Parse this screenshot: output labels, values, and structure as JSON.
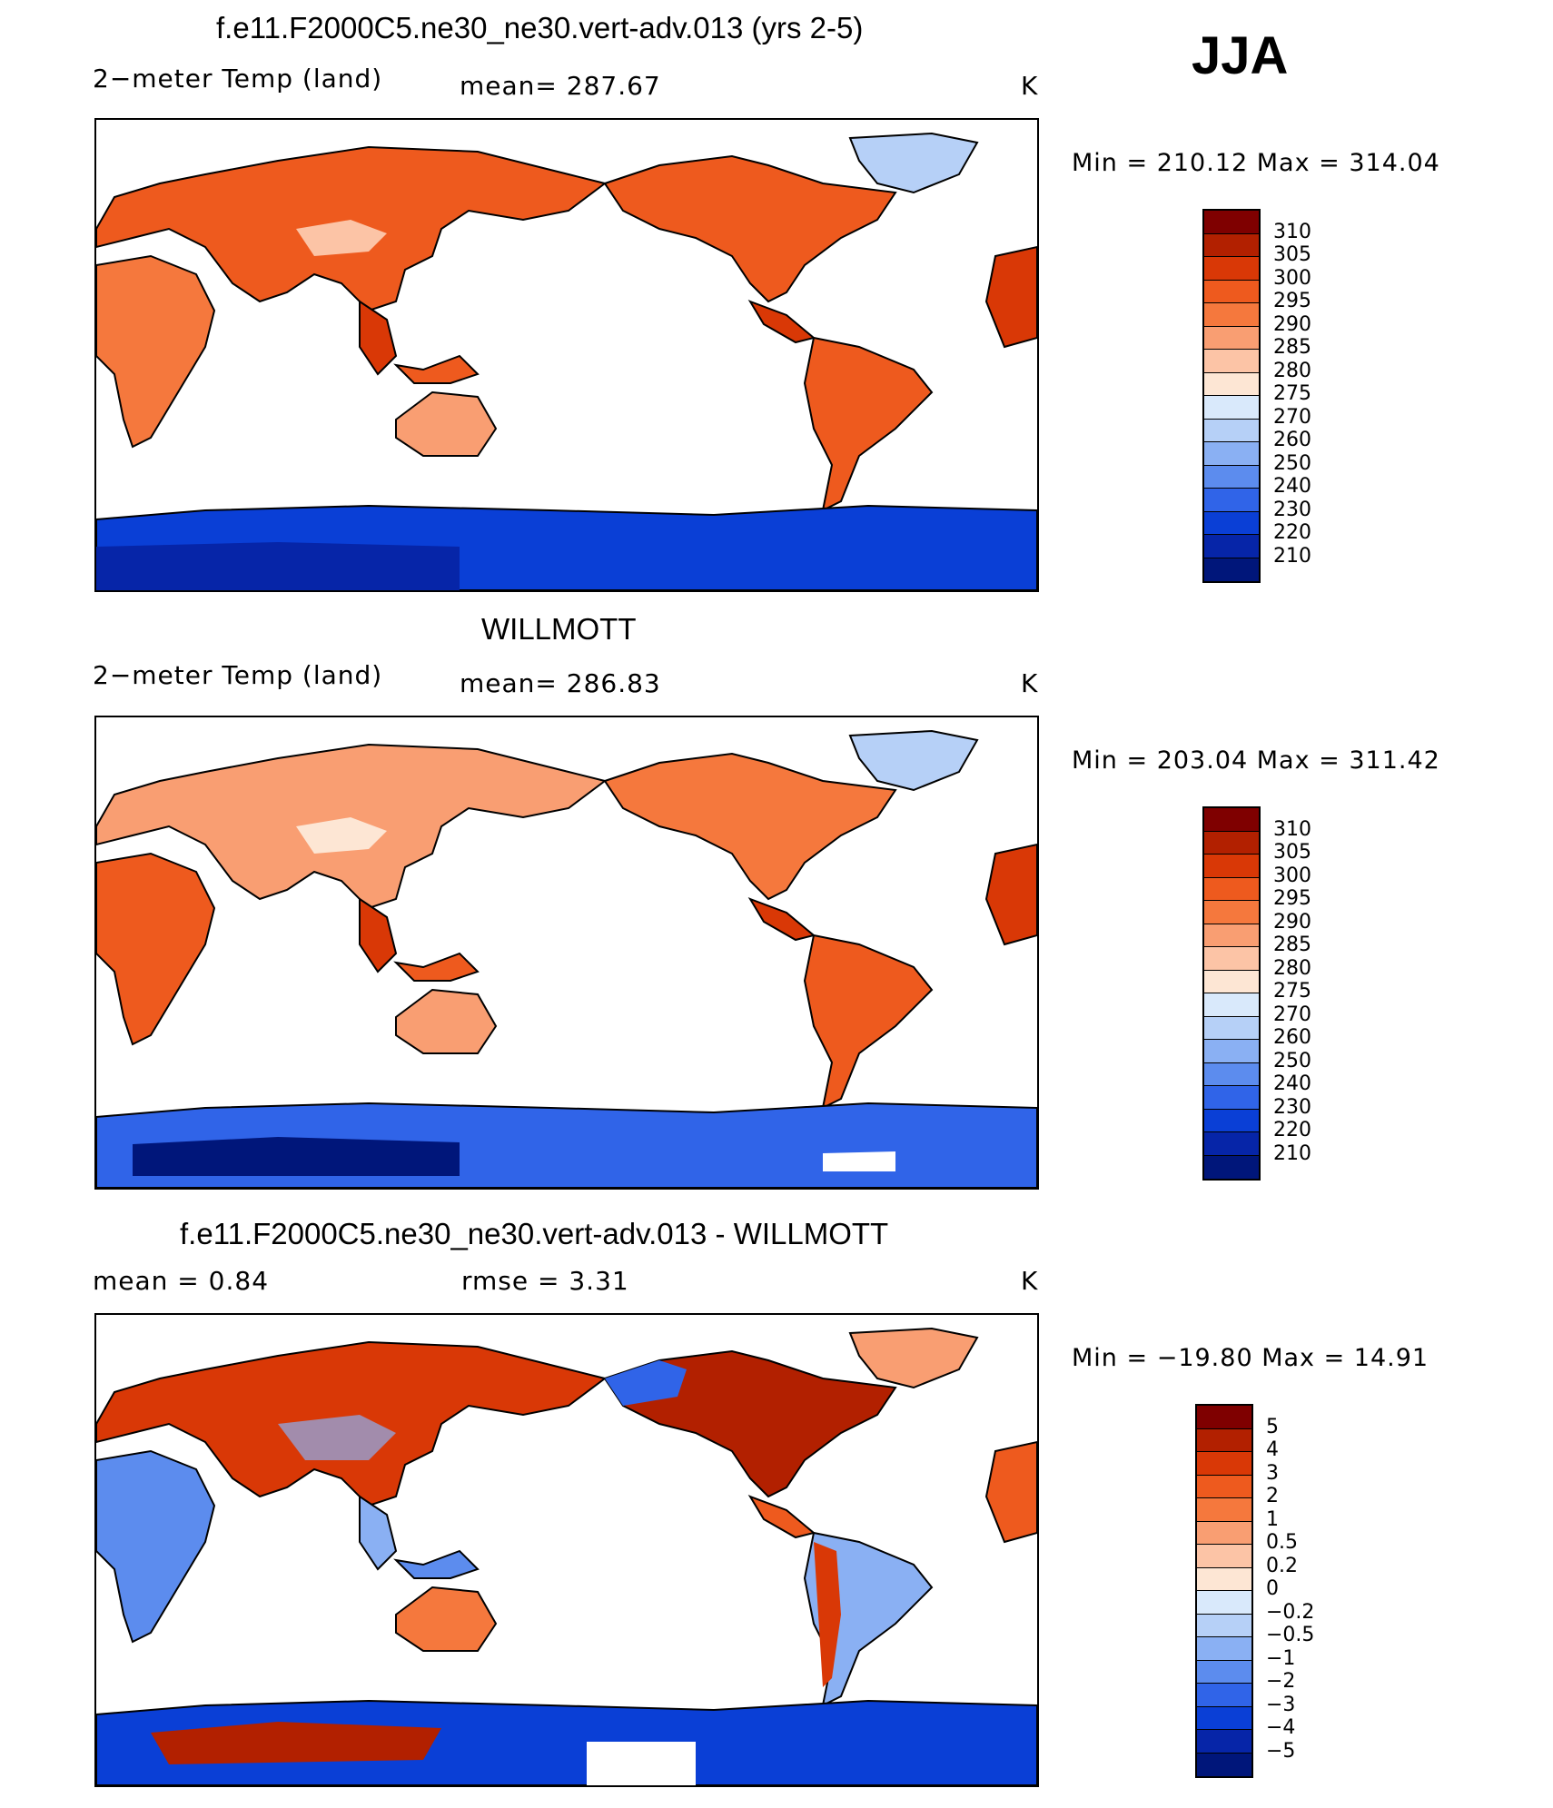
{
  "season": "JJA",
  "panels": [
    {
      "title": "f.e11.F2000C5.ne30_ne30.vert-adv.013 (yrs 2-5)",
      "left_label": "2−meter Temp (land)",
      "mid_label": "mean=  287.67",
      "unit": "K",
      "minmax": "Min  =  210.12  Max  =  314.04",
      "colorbar_labels": [
        "310",
        "305",
        "300",
        "295",
        "290",
        "285",
        "280",
        "275",
        "270",
        "260",
        "250",
        "240",
        "230",
        "220",
        "210"
      ],
      "colors": [
        "#7f0000",
        "#b22000",
        "#d93806",
        "#ee5a1e",
        "#f5783d",
        "#f99e72",
        "#fcc4a6",
        "#fde6d4",
        "#d9e9fb",
        "#b6d0f7",
        "#8ab0f3",
        "#5c8cee",
        "#3064e8",
        "#0a3fd6",
        "#0625a8",
        "#00167a"
      ]
    },
    {
      "title": "WILLMOTT",
      "left_label": "2−meter Temp (land)",
      "mid_label": "mean=  286.83",
      "unit": "K",
      "minmax": "Min  =  203.04  Max  =  311.42",
      "colorbar_labels": [
        "310",
        "305",
        "300",
        "295",
        "290",
        "285",
        "280",
        "275",
        "270",
        "260",
        "250",
        "240",
        "230",
        "220",
        "210"
      ],
      "colors": [
        "#7f0000",
        "#b22000",
        "#d93806",
        "#ee5a1e",
        "#f5783d",
        "#f99e72",
        "#fcc4a6",
        "#fde6d4",
        "#d9e9fb",
        "#b6d0f7",
        "#8ab0f3",
        "#5c8cee",
        "#3064e8",
        "#0a3fd6",
        "#0625a8",
        "#00167a"
      ]
    },
    {
      "title": "f.e11.F2000C5.ne30_ne30.vert-adv.013 - WILLMOTT",
      "left_label": "mean  =      0.84",
      "mid_label": "rmse  =      3.31",
      "unit": "K",
      "minmax": "Min  =  −19.80  Max  =     14.91",
      "colorbar_labels": [
        "5",
        "4",
        "3",
        "2",
        "1",
        "0.5",
        "0.2",
        "0",
        "−0.2",
        "−0.5",
        "−1",
        "−2",
        "−3",
        "−4",
        "−5"
      ],
      "colors": [
        "#7f0000",
        "#b22000",
        "#d93806",
        "#ee5a1e",
        "#f5783d",
        "#f99e72",
        "#fcc4a6",
        "#fde6d4",
        "#d9e9fb",
        "#b6d0f7",
        "#8ab0f3",
        "#5c8cee",
        "#3064e8",
        "#0a3fd6",
        "#0625a8",
        "#00167a"
      ]
    }
  ]
}
